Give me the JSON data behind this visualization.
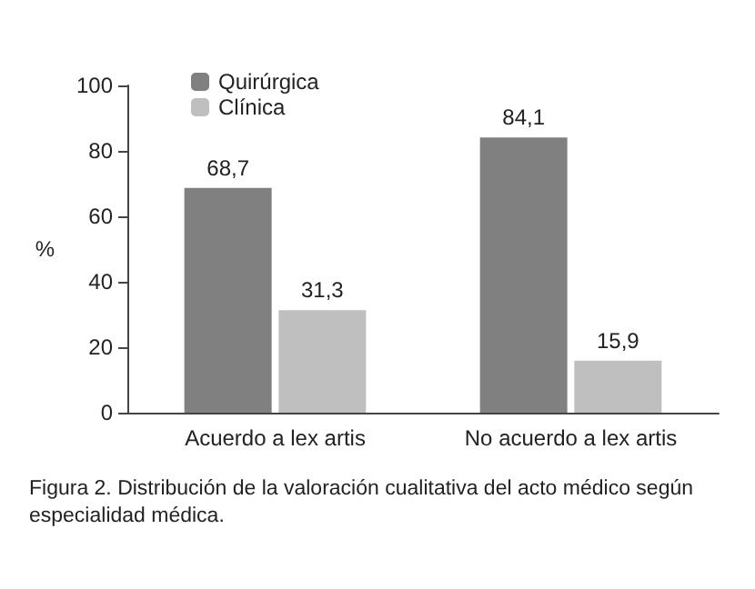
{
  "chart_data": {
    "type": "bar",
    "categories": [
      "Acuerdo a lex artis",
      "No acuerdo a lex artis"
    ],
    "series": [
      {
        "name": "Quirúrgica",
        "color": "#808080",
        "values": [
          68.7,
          84.1
        ]
      },
      {
        "name": "Clínica",
        "color": "#bfbfbf",
        "values": [
          31.3,
          15.9
        ]
      }
    ],
    "value_labels": [
      [
        "68,7",
        "84,1"
      ],
      [
        "31,3",
        "15,9"
      ]
    ],
    "ylabel": "%",
    "ylim": [
      0,
      100
    ],
    "yticks": [
      0,
      20,
      40,
      60,
      80,
      100
    ],
    "grid": false,
    "legend": "top left",
    "annotations": [
      "Figura 2. Distribución de la valoración cualitativa del acto médico según especialidad médica."
    ]
  }
}
